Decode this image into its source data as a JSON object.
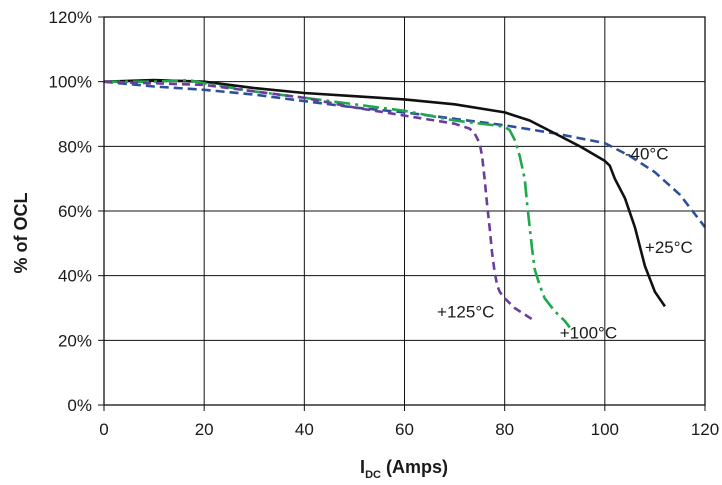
{
  "chart_data": {
    "type": "line",
    "xlabel_main": "I",
    "xlabel_sub": "DC",
    "xlabel_rest": " (Amps)",
    "ylabel": "% of OCL",
    "xlim": [
      0,
      120
    ],
    "ylim": [
      0,
      120
    ],
    "x_ticks": [
      0,
      20,
      40,
      60,
      80,
      100,
      120
    ],
    "y_ticks": [
      0,
      20,
      40,
      60,
      80,
      100,
      120
    ],
    "x_tick_labels": [
      "0",
      "20",
      "40",
      "60",
      "80",
      "100",
      "120"
    ],
    "y_tick_labels": [
      "0%",
      "20%",
      "40%",
      "60%",
      "80%",
      "100%",
      "120%"
    ],
    "grid": true,
    "series": [
      {
        "name": "-40°C",
        "color": "#2e4f9a",
        "dash": "9,5",
        "x": [
          0,
          10,
          20,
          30,
          40,
          50,
          60,
          70,
          80,
          90,
          100,
          105,
          110,
          115,
          120
        ],
        "y": [
          100,
          98.5,
          97.5,
          96,
          94,
          92,
          90.5,
          88.5,
          86.5,
          84,
          81,
          77,
          72,
          65,
          55
        ]
      },
      {
        "name": "+25°C",
        "color": "#111111",
        "dash": "",
        "x": [
          0,
          10,
          20,
          30,
          40,
          50,
          60,
          70,
          80,
          85,
          90,
          95,
          100,
          101,
          102,
          104,
          106,
          108,
          110,
          112
        ],
        "y": [
          100,
          100.5,
          100,
          98,
          96.5,
          95.5,
          94.5,
          93,
          90.5,
          88,
          84,
          80,
          75.5,
          74,
          70,
          64,
          55,
          43,
          35,
          30.5
        ]
      },
      {
        "name": "+100°C",
        "color": "#1fa84a",
        "dash": "16,5,3,5",
        "x": [
          0,
          10,
          17,
          20,
          30,
          40,
          50,
          60,
          70,
          78,
          80,
          81,
          82,
          83,
          84,
          84.5,
          85,
          85.5,
          86,
          87,
          88,
          90,
          92,
          93
        ],
        "y": [
          100,
          100,
          100.5,
          99.5,
          97,
          95,
          93,
          91,
          88,
          86.5,
          86,
          85,
          82,
          77,
          70,
          62,
          55,
          48,
          42,
          37,
          33,
          29,
          26,
          24
        ]
      },
      {
        "name": "+125°C",
        "color": "#6a3d9a",
        "dash": "8,5",
        "x": [
          0,
          10,
          20,
          30,
          40,
          50,
          60,
          70,
          73,
          74,
          75,
          75.5,
          76,
          76.5,
          77,
          77.5,
          78,
          78.5,
          79,
          80,
          82,
          84,
          86
        ],
        "y": [
          100,
          99.5,
          99,
          97,
          95,
          92,
          89.5,
          87,
          85.5,
          84,
          81,
          77,
          70,
          62,
          55,
          47,
          41,
          37,
          35,
          33,
          30,
          28,
          26
        ]
      }
    ],
    "annotations": [
      {
        "text": "-40°C",
        "x": 104,
        "y": 76
      },
      {
        "text": "+25°C",
        "x": 108,
        "y": 47
      },
      {
        "text": "+125°C",
        "x": 66.5,
        "y": 27
      },
      {
        "text": "+100°C",
        "x": 91,
        "y": 20.5
      }
    ]
  }
}
